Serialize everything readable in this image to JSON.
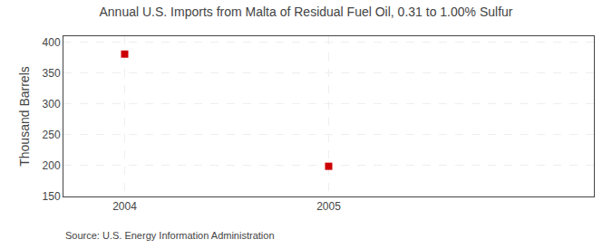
{
  "chart_data": {
    "type": "scatter",
    "title": "Annual U.S. Imports from Malta of Residual Fuel Oil, 0.31 to 1.00% Sulfur",
    "ylabel": "Thousand Barrels",
    "source": "Source: U.S. Energy Information Administration",
    "x": [
      2004,
      2005
    ],
    "values": [
      381,
      199
    ],
    "color": "#cc0000",
    "marker": "square",
    "xlim": [
      2003.7,
      2006.3
    ],
    "ylim": [
      150,
      410
    ],
    "xticks": [
      2004,
      2005
    ],
    "yticks": [
      150,
      200,
      250,
      300,
      350,
      400
    ],
    "grid": true
  }
}
